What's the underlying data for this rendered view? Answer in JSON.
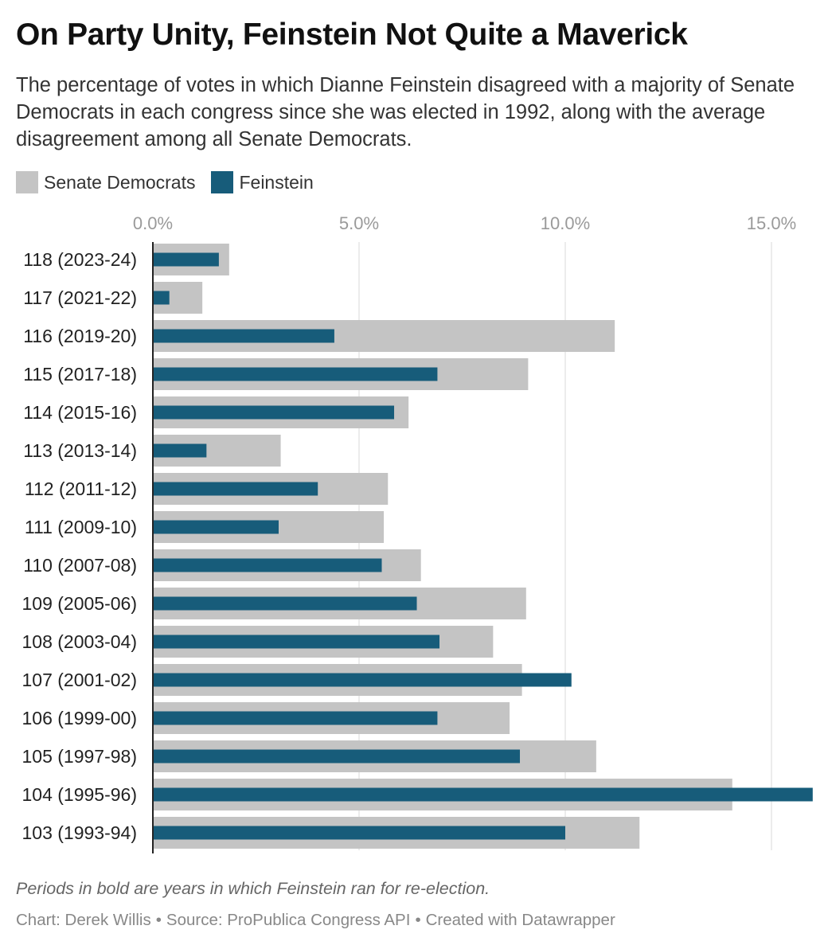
{
  "title": "On Party Unity, Feinstein Not Quite a Maverick",
  "subtitle": "The percentage of votes in which Dianne Feinstein disagreed with a majority of Senate Democrats in each congress since she was elected in 1992, along with the average disagreement among all Senate Democrats.",
  "notes": "Periods in bold are years in which Feinstein ran for re-election.",
  "credits": {
    "chart": "Chart: Derek Willis",
    "source": "Source: ProPublica Congress API",
    "tool": "Created with Datawrapper",
    "separator": "•"
  },
  "colors": {
    "senate_democrats": "#c4c4c4",
    "feinstein": "#175c7a",
    "grid": "#d9d9d9",
    "axis_tick": "#9a9a9a"
  },
  "chart_data": {
    "type": "bar",
    "orientation": "horizontal",
    "categories": [
      "118 (2023-24)",
      "117 (2021-22)",
      "116 (2019-20)",
      "115 (2017-18)",
      "114 (2015-16)",
      "113 (2013-14)",
      "112 (2011-12)",
      "111 (2009-10)",
      "110 (2007-08)",
      "109 (2005-06)",
      "108 (2003-04)",
      "107 (2001-02)",
      "106 (1999-00)",
      "105 (1997-98)",
      "104 (1995-96)",
      "103 (1993-94)"
    ],
    "series": [
      {
        "name": "Senate Democrats",
        "color": "#c4c4c4",
        "values": [
          1.85,
          1.2,
          11.2,
          9.1,
          6.2,
          3.1,
          5.7,
          5.6,
          6.5,
          9.05,
          8.25,
          8.95,
          8.65,
          10.75,
          14.05,
          11.8
        ]
      },
      {
        "name": "Feinstein",
        "color": "#175c7a",
        "values": [
          1.6,
          0.4,
          4.4,
          6.9,
          5.85,
          1.3,
          4.0,
          3.05,
          5.55,
          6.4,
          6.95,
          10.15,
          6.9,
          8.9,
          16.0,
          10.0
        ]
      }
    ],
    "xlim": [
      0,
      16
    ],
    "x_ticks": [
      0,
      5,
      10,
      15
    ],
    "x_tick_labels": [
      "0.0%",
      "5.0%",
      "10.0%",
      "15.0%"
    ],
    "grid": true,
    "legend_position": "top-left"
  }
}
